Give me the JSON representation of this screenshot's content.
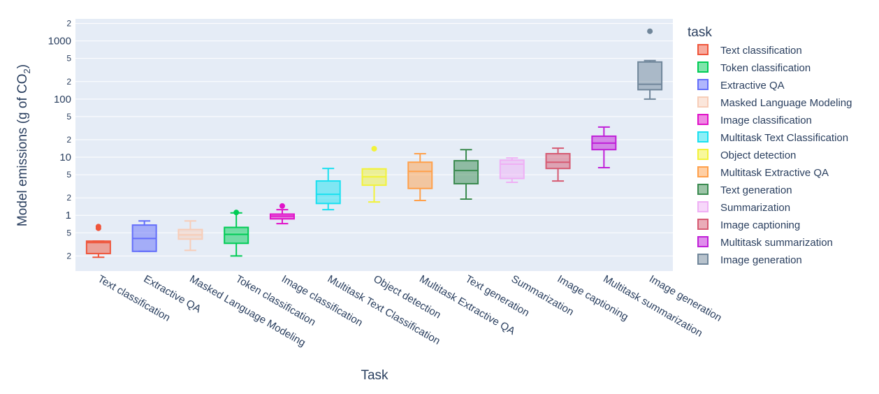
{
  "chart_data": {
    "type": "box",
    "title": "",
    "xlabel": "Task",
    "ylabel": "Model emissions (g of CO",
    "ylabel_subscript": "2",
    "ylabel_suffix": ")",
    "yscale": "log",
    "ylim": [
      0.11,
      2400
    ],
    "grid": true,
    "y_ticks": [
      {
        "value": 0.2,
        "label": "2",
        "major": false
      },
      {
        "value": 0.5,
        "label": "5",
        "major": false
      },
      {
        "value": 1,
        "label": "1",
        "major": true
      },
      {
        "value": 2,
        "label": "2",
        "major": false
      },
      {
        "value": 5,
        "label": "5",
        "major": false
      },
      {
        "value": 10,
        "label": "10",
        "major": true
      },
      {
        "value": 20,
        "label": "2",
        "major": false
      },
      {
        "value": 50,
        "label": "5",
        "major": false
      },
      {
        "value": 100,
        "label": "100",
        "major": true
      },
      {
        "value": 200,
        "label": "2",
        "major": false
      },
      {
        "value": 500,
        "label": "5",
        "major": false
      },
      {
        "value": 1000,
        "label": "1000",
        "major": true
      },
      {
        "value": 2000,
        "label": "2",
        "major": false
      }
    ],
    "legend": {
      "title": "task",
      "position": "right"
    },
    "categories": [
      "Text classification",
      "Extractive QA",
      "Masked Language Modeling",
      "Token classification",
      "Image classification",
      "Multitask Text Classification",
      "Object detection",
      "Multitask Extractive QA",
      "Text generation",
      "Summarization",
      "Image captioning",
      "Multitask summarization",
      "Image generation"
    ],
    "series": [
      {
        "name": "Text classification",
        "color": "#ef553b",
        "min": 0.19,
        "q1": 0.22,
        "median": 0.34,
        "q3": 0.36,
        "max": 0.36,
        "outliers": [
          0.6,
          0.64
        ]
      },
      {
        "name": "Token classification",
        "color": "#00cc55",
        "min": 0.2,
        "q1": 0.33,
        "median": 0.47,
        "q3": 0.62,
        "max": 1.1,
        "outliers": [
          1.12
        ]
      },
      {
        "name": "Extractive QA",
        "color": "#636efa",
        "min": 0.24,
        "q1": 0.24,
        "median": 0.4,
        "q3": 0.68,
        "max": 0.8,
        "outliers": []
      },
      {
        "name": "Masked Language Modeling",
        "color": "#f7cdb8",
        "min": 0.25,
        "q1": 0.39,
        "median": 0.46,
        "q3": 0.57,
        "max": 0.8,
        "outliers": []
      },
      {
        "name": "Image classification",
        "color": "#e012c8",
        "min": 0.72,
        "q1": 0.87,
        "median": 0.97,
        "q3": 1.05,
        "max": 1.25,
        "outliers": [
          1.45
        ]
      },
      {
        "name": "Multitask Text Classification",
        "color": "#19e0f0",
        "min": 1.25,
        "q1": 1.6,
        "median": 2.3,
        "q3": 3.9,
        "max": 6.4,
        "outliers": []
      },
      {
        "name": "Object detection",
        "color": "#f2f23a",
        "min": 1.7,
        "q1": 3.3,
        "median": 4.6,
        "q3": 6.3,
        "max": 6.3,
        "outliers": [
          14
        ]
      },
      {
        "name": "Multitask Extractive QA",
        "color": "#ffa04a",
        "min": 1.8,
        "q1": 2.9,
        "median": 5.7,
        "q3": 8.2,
        "max": 11.5,
        "outliers": []
      },
      {
        "name": "Text generation",
        "color": "#3a8a4f",
        "min": 1.9,
        "q1": 3.5,
        "median": 5.9,
        "q3": 8.7,
        "max": 13.5,
        "outliers": []
      },
      {
        "name": "Summarization",
        "color": "#efb0f5",
        "min": 3.7,
        "q1": 4.3,
        "median": 7.6,
        "q3": 8.9,
        "max": 9.7,
        "outliers": []
      },
      {
        "name": "Image captioning",
        "color": "#d65a72",
        "min": 3.9,
        "q1": 6.4,
        "median": 8.2,
        "q3": 11.5,
        "max": 14.3,
        "outliers": []
      },
      {
        "name": "Multitask summarization",
        "color": "#c020d8",
        "min": 6.6,
        "q1": 13.5,
        "median": 17.5,
        "q3": 23,
        "max": 33,
        "outliers": []
      },
      {
        "name": "Image generation",
        "color": "#70869a",
        "min": 100,
        "q1": 145,
        "median": 180,
        "q3": 435,
        "max": 460,
        "outliers": [
          1470
        ]
      }
    ]
  }
}
